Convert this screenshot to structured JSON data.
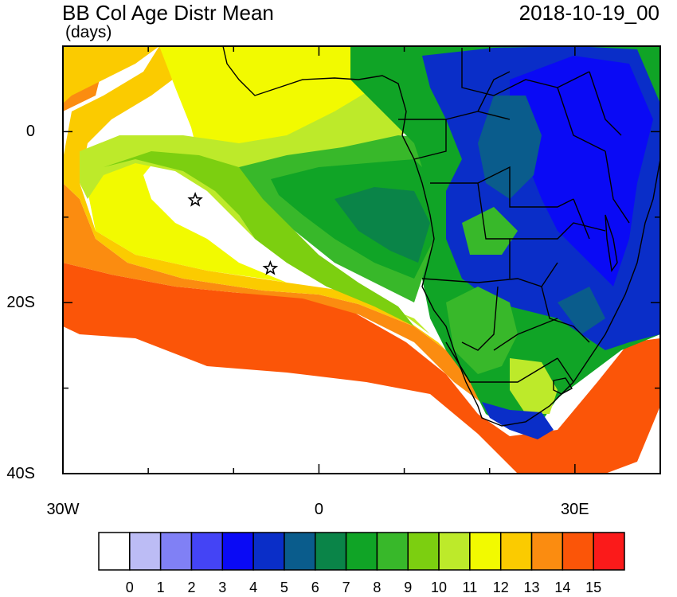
{
  "title": "BB Col Age Distr Mean",
  "units": "(days)",
  "date": "2018-10-19_00",
  "axes": {
    "lon_labels": [
      {
        "value": -30,
        "label": "30W"
      },
      {
        "value": 0,
        "label": "0"
      },
      {
        "value": 30,
        "label": "30E"
      }
    ],
    "lat_labels": [
      {
        "value": 0,
        "label": "0"
      },
      {
        "value": -20,
        "label": "20S"
      },
      {
        "value": -40,
        "label": "40S"
      }
    ],
    "lon_range": [
      -30,
      40
    ],
    "lat_range": [
      -40,
      10
    ]
  },
  "colorbar": {
    "colors": [
      "#ffffff",
      "#bcbcf5",
      "#8080f5",
      "#4444f5",
      "#0a0af5",
      "#0a2ec8",
      "#0a5c8c",
      "#0a8448",
      "#10a426",
      "#38b82a",
      "#7ccf10",
      "#bdea2a",
      "#f2fa00",
      "#fbcb00",
      "#fb8c10",
      "#fb5508",
      "#fb1a1a"
    ],
    "labels": [
      "0",
      "1",
      "2",
      "3",
      "4",
      "5",
      "6",
      "7",
      "8",
      "9",
      "10",
      "11",
      "12",
      "13",
      "14",
      "15"
    ]
  },
  "markers": [
    {
      "name": "star",
      "lon": -14.5,
      "lat": -8
    },
    {
      "name": "star",
      "lon": -5.7,
      "lat": -16
    }
  ],
  "legend_colors": {
    "ocean_far": "#fb5508",
    "ocean_mid": "#fb8c10",
    "ocean_near": "#f2fa00",
    "land_low": "#0a2ec8",
    "land_mid": "#10a426"
  }
}
